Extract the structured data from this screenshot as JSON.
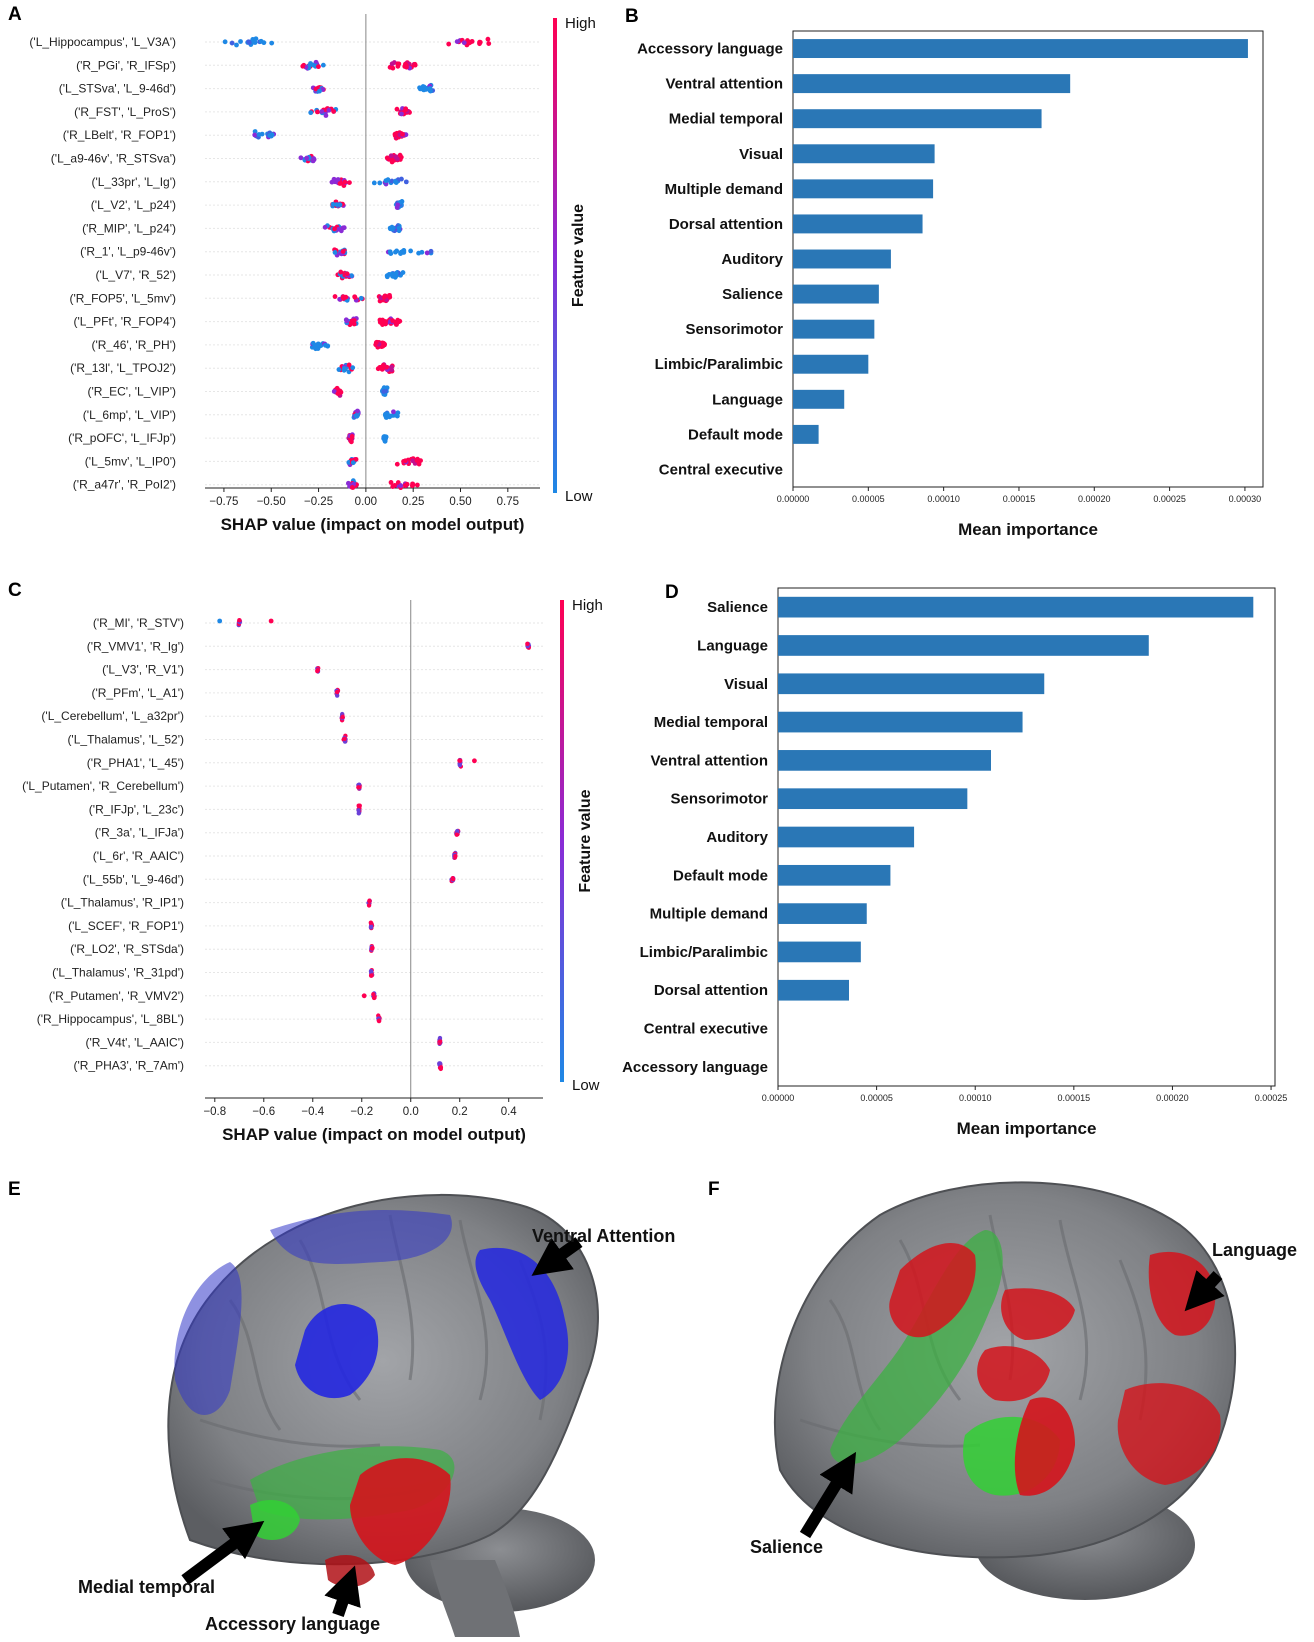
{
  "panels": {
    "A": "A",
    "B": "B",
    "C": "C",
    "D": "D",
    "E": "E",
    "F": "F"
  },
  "colors": {
    "bar": "#2a77b6",
    "high": "#ff0052",
    "low": "#1e88e5",
    "brain": "#8a8c90",
    "blue": "#2a2fd0",
    "green": "#3cb043",
    "red": "#d4141c"
  },
  "chart_data": [
    {
      "id": "A",
      "type": "scatter",
      "xlabel": "SHAP value (impact on model output)",
      "xticks": [
        -0.75,
        -0.5,
        -0.25,
        0.0,
        0.25,
        0.5,
        0.75
      ],
      "xtick_labels": [
        "−0.75",
        "−0.50",
        "−0.25",
        "0.00",
        "0.25",
        "0.50",
        "0.75"
      ],
      "xlim": [
        -0.85,
        0.92
      ],
      "colorbar": {
        "title": "Feature value",
        "high": "High",
        "low": "Low"
      },
      "features": [
        "('L_Hippocampus', 'L_V3A')",
        "('R_PGi', 'R_IFSp')",
        "('L_STSva', 'L_9-46d')",
        "('R_FST', 'L_ProS')",
        "('R_LBelt', 'R_FOP1')",
        "('L_a9-46v', 'R_STSva')",
        "('L_33pr', 'L_Ig')",
        "('L_V2', 'L_p24')",
        "('R_MIP', 'L_p24')",
        "('R_1', 'L_p9-46v')",
        "('L_V7', 'R_52')",
        "('R_FOP5', 'L_5mv')",
        "('L_PFt', 'R_FOP4')",
        "('R_46', 'R_PH')",
        "('R_13l', 'L_TPOJ2')",
        "('R_EC', 'L_VIP')",
        "('L_6mp', 'L_VIP')",
        "('R_pOFC', 'L_IFJp')",
        "('L_5mv', 'L_IP0')",
        "('R_a47r', 'R_PoI2')"
      ],
      "clusters": [
        [
          [
            -0.62,
            0.2,
            0.5,
            "L"
          ],
          [
            0.55,
            0.15,
            0.5,
            "H"
          ]
        ],
        [
          [
            -0.28,
            0.08,
            0.6,
            "M"
          ],
          [
            0.22,
            0.12,
            0.8,
            "H"
          ]
        ],
        [
          [
            -0.25,
            0.05,
            0.7,
            "M"
          ],
          [
            0.32,
            0.05,
            0.6,
            "L"
          ]
        ],
        [
          [
            -0.22,
            0.08,
            0.7,
            "M"
          ],
          [
            0.2,
            0.06,
            0.9,
            "H"
          ]
        ],
        [
          [
            -0.52,
            0.12,
            0.6,
            "L"
          ],
          [
            0.18,
            0.05,
            1.0,
            "H"
          ]
        ],
        [
          [
            -0.3,
            0.05,
            0.6,
            "M"
          ],
          [
            0.15,
            0.06,
            1.0,
            "H"
          ]
        ],
        [
          [
            -0.13,
            0.08,
            0.6,
            "M"
          ],
          [
            0.12,
            0.12,
            0.5,
            "L"
          ]
        ],
        [
          [
            -0.15,
            0.05,
            0.7,
            "M"
          ],
          [
            0.17,
            0.03,
            0.7,
            "L"
          ]
        ],
        [
          [
            -0.17,
            0.08,
            0.6,
            "M"
          ],
          [
            0.15,
            0.05,
            0.7,
            "L"
          ]
        ],
        [
          [
            -0.14,
            0.06,
            0.7,
            "M"
          ],
          [
            0.2,
            0.35,
            0.4,
            "L"
          ]
        ],
        [
          [
            -0.12,
            0.06,
            0.6,
            "M"
          ],
          [
            0.15,
            0.08,
            0.6,
            "L"
          ]
        ],
        [
          [
            -0.1,
            0.12,
            0.5,
            "M"
          ],
          [
            0.1,
            0.05,
            0.9,
            "H"
          ]
        ],
        [
          [
            -0.08,
            0.05,
            0.7,
            "M"
          ],
          [
            0.12,
            0.08,
            0.9,
            "H"
          ]
        ],
        [
          [
            -0.25,
            0.1,
            0.5,
            "L"
          ],
          [
            0.08,
            0.05,
            1.0,
            "H"
          ]
        ],
        [
          [
            -0.1,
            0.05,
            0.6,
            "M"
          ],
          [
            0.1,
            0.06,
            0.9,
            "H"
          ]
        ],
        [
          [
            -0.15,
            0.03,
            0.7,
            "H"
          ],
          [
            0.1,
            0.02,
            0.7,
            "L"
          ]
        ],
        [
          [
            -0.05,
            0.02,
            0.7,
            "M"
          ],
          [
            0.13,
            0.07,
            0.5,
            "L"
          ]
        ],
        [
          [
            -0.08,
            0.02,
            0.8,
            "H"
          ],
          [
            0.1,
            0.01,
            0.7,
            "L"
          ]
        ],
        [
          [
            -0.07,
            0.03,
            0.7,
            "M"
          ],
          [
            0.25,
            0.1,
            0.4,
            "H"
          ]
        ],
        [
          [
            -0.07,
            0.03,
            0.7,
            "M"
          ],
          [
            0.2,
            0.12,
            0.4,
            "H"
          ]
        ]
      ]
    },
    {
      "id": "B",
      "type": "bar",
      "xlabel": "Mean importance",
      "categories": [
        "Accessory language",
        "Ventral attention",
        "Medial temporal",
        "Visual",
        "Multiple demand",
        "Dorsal attention",
        "Auditory",
        "Salience",
        "Sensorimotor",
        "Limbic/Paralimbic",
        "Language",
        "Default mode",
        "Central executive"
      ],
      "values": [
        0.000302,
        0.000184,
        0.000165,
        9.4e-05,
        9.3e-05,
        8.6e-05,
        6.5e-05,
        5.7e-05,
        5.4e-05,
        5e-05,
        3.4e-05,
        1.7e-05,
        0.0
      ],
      "xticks": [
        0,
        5e-05,
        0.0001,
        0.00015,
        0.0002,
        0.00025,
        0.0003
      ],
      "xtick_labels": [
        "0.00000",
        "0.00005",
        "0.00010",
        "0.00015",
        "0.00020",
        "0.00025",
        "0.00030"
      ],
      "xlim": [
        0,
        0.000312
      ]
    },
    {
      "id": "C",
      "type": "scatter",
      "xlabel": "SHAP value (impact on model output)",
      "xticks": [
        -0.8,
        -0.6,
        -0.4,
        -0.2,
        0.0,
        0.2,
        0.4
      ],
      "xtick_labels": [
        "−0.8",
        "−0.6",
        "−0.4",
        "−0.2",
        "0.0",
        "0.2",
        "0.4"
      ],
      "xlim": [
        -0.84,
        0.54
      ],
      "colorbar": {
        "title": "Feature value",
        "high": "High",
        "low": "Low"
      },
      "features": [
        "('R_MI', 'R_STV')",
        "('R_VMV1', 'R_Ig')",
        "('L_V3', 'R_V1')",
        "('R_PFm', 'L_A1')",
        "('L_Cerebellum', 'L_a32pr')",
        "('L_Thalamus', 'L_52')",
        "('R_PHA1', 'L_45')",
        "('L_Putamen', 'R_Cerebellum')",
        "('R_IFJp', 'L_23c')",
        "('R_3a', 'L_IFJa')",
        "('L_6r', 'R_AAIC')",
        "('L_55b', 'L_9-46d')",
        "('L_Thalamus', 'R_IP1')",
        "('L_SCEF', 'R_FOP1')",
        "('R_LO2', 'R_STSda')",
        "('L_Thalamus', 'R_31pd')",
        "('R_Putamen', 'R_VMV2')",
        "('R_Hippocampus', 'L_8BL')",
        "('R_V4t', 'L_AAIC')",
        "('R_PHA3', 'R_7Am')"
      ],
      "positions": [
        -0.7,
        0.48,
        -0.38,
        -0.3,
        -0.28,
        -0.27,
        0.2,
        -0.21,
        -0.21,
        0.19,
        0.18,
        0.17,
        -0.17,
        -0.16,
        -0.16,
        -0.16,
        -0.15,
        -0.13,
        0.12,
        0.12
      ]
    },
    {
      "id": "D",
      "type": "bar",
      "xlabel": "Mean importance",
      "categories": [
        "Salience",
        "Language",
        "Visual",
        "Medial temporal",
        "Ventral attention",
        "Sensorimotor",
        "Auditory",
        "Default mode",
        "Multiple demand",
        "Limbic/Paralimbic",
        "Dorsal attention",
        "Central executive",
        "Accessory language"
      ],
      "values": [
        0.000241,
        0.000188,
        0.000135,
        0.000124,
        0.000108,
        9.6e-05,
        6.9e-05,
        5.7e-05,
        4.5e-05,
        4.2e-05,
        3.6e-05,
        0.0,
        0.0
      ],
      "xticks": [
        0,
        5e-05,
        0.0001,
        0.00015,
        0.0002,
        0.00025
      ],
      "xtick_labels": [
        "0.00000",
        "0.00005",
        "0.00010",
        "0.00015",
        "0.00020",
        "0.00025"
      ],
      "xlim": [
        0,
        0.000252
      ]
    }
  ],
  "brains": {
    "E": {
      "labels": {
        "ventral": "Ventral Attention",
        "medial": "Medial temporal",
        "accessory": "Accessory language"
      }
    },
    "F": {
      "labels": {
        "language": "Language",
        "salience": "Salience"
      }
    }
  }
}
